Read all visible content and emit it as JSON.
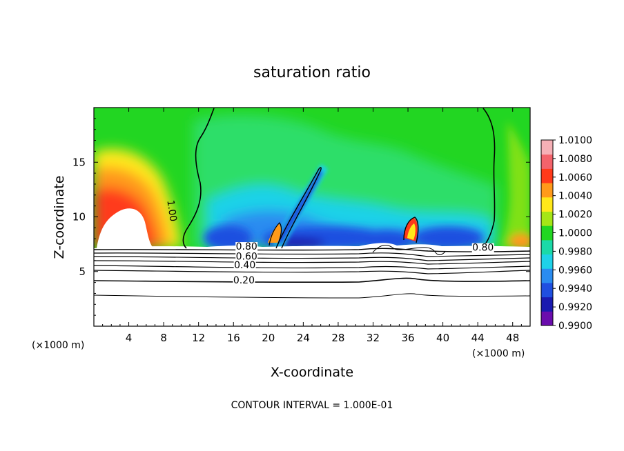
{
  "chart_data": {
    "type": "heatmap",
    "title": "saturation ratio",
    "xlabel": "X-coordinate",
    "ylabel": "Z-coordinate",
    "x_unit_left": "(×1000 m)",
    "x_unit_right": "(×1000 m)",
    "footer": "CONTOUR INTERVAL = 1.000E-01",
    "xlim": [
      0,
      50
    ],
    "ylim": [
      0,
      20
    ],
    "x_ticks": [
      4,
      8,
      12,
      16,
      20,
      24,
      28,
      32,
      36,
      40,
      44,
      48
    ],
    "x_tick_labels": [
      "4",
      "8",
      "12",
      "16",
      "20",
      "24",
      "28",
      "32",
      "36",
      "40",
      "44",
      "48"
    ],
    "y_ticks": [
      5,
      10,
      15
    ],
    "y_tick_labels": [
      "5",
      "10",
      "15"
    ],
    "grid": false,
    "colorbar": {
      "min": 0.99,
      "max": 1.01,
      "labels": [
        "1.0100",
        "1.0080",
        "1.0060",
        "1.0040",
        "1.0020",
        "1.0000",
        "0.9980",
        "0.9960",
        "0.9940",
        "0.9920",
        "0.9900"
      ],
      "colors": [
        "#6a0dad",
        "#1a1ab0",
        "#1f4fe0",
        "#2a8cf0",
        "#1fd2e8",
        "#1bd9a8",
        "#22d622",
        "#a6e616",
        "#ffe81a",
        "#ff9a1a",
        "#ff3a1a",
        "#f3636b",
        "#f6b0b6"
      ]
    },
    "contour_labels": [
      {
        "text": "1.00",
        "x": 8.9,
        "z": 10.3,
        "rotate": 82
      },
      {
        "text": "0.80",
        "x": 17.5,
        "z": 7.0,
        "rotate": 0
      },
      {
        "text": "0.60",
        "x": 17.5,
        "z": 6.1,
        "rotate": 0
      },
      {
        "text": "0.40",
        "x": 17.3,
        "z": 5.3,
        "rotate": 0
      },
      {
        "text": "0.20",
        "x": 17.2,
        "z": 3.9,
        "rotate": 0
      },
      {
        "text": "0.80",
        "x": 44.6,
        "z": 6.9,
        "rotate": 0
      }
    ],
    "contour_levels": [
      0.2,
      0.4,
      0.6,
      0.8,
      1.0
    ]
  }
}
